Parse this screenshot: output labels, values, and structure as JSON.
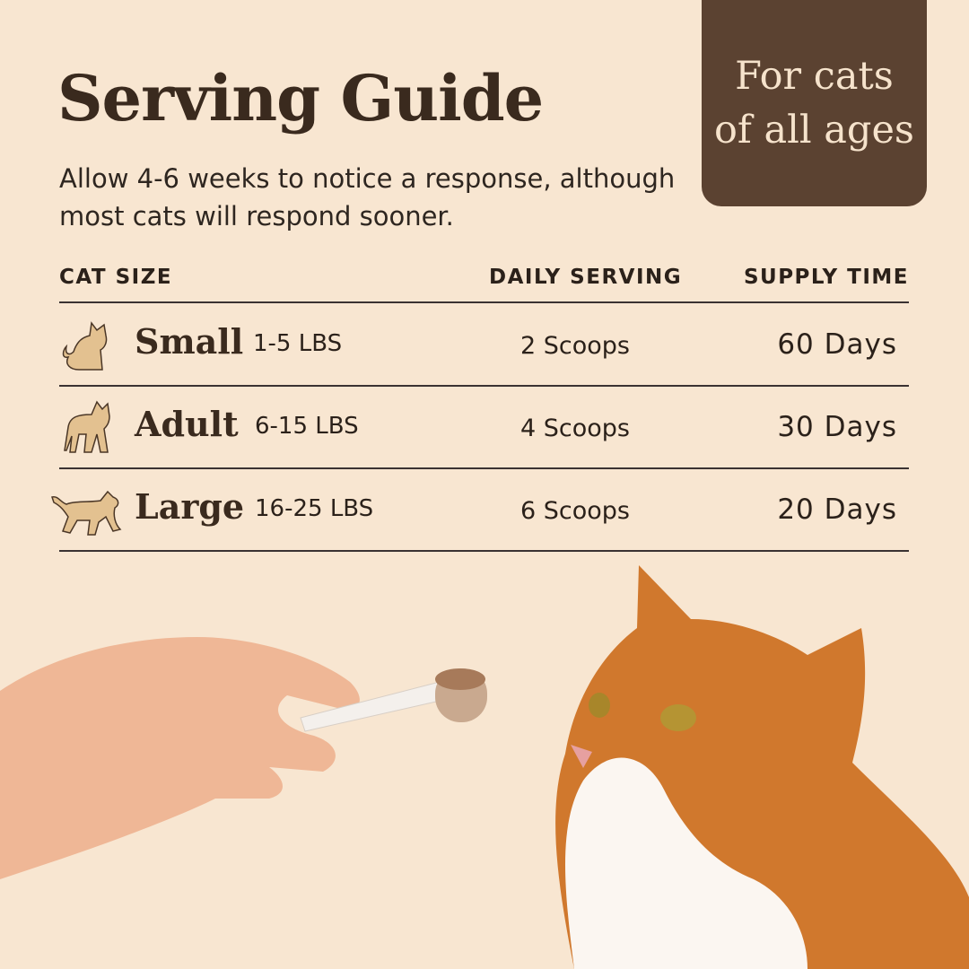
{
  "header": {
    "title": "Serving Guide",
    "subtitle": "Allow 4-6 weeks to notice a response, although most cats will respond sooner."
  },
  "badge": {
    "line1": "For cats",
    "line2": "of all ages",
    "color": "#5b4231"
  },
  "table": {
    "headers": [
      "CAT SIZE",
      "DAILY SERVING",
      "SUPPLY TIME"
    ],
    "rows": [
      {
        "icon": "sitting-cat-icon",
        "size": "Small",
        "weight": "1-5 LBS",
        "serving": "2 Scoops",
        "supply": "60 Days"
      },
      {
        "icon": "standing-cat-icon",
        "size": "Adult",
        "weight": "6-15 LBS",
        "serving": "4 Scoops",
        "supply": "30 Days"
      },
      {
        "icon": "walking-cat-icon",
        "size": "Large",
        "weight": "16-25 LBS",
        "serving": "6 Scoops",
        "supply": "20 Days"
      }
    ]
  },
  "colors": {
    "background": "#f8e6d1",
    "icon_fill": "#e3c190",
    "text": "#2b211a"
  }
}
